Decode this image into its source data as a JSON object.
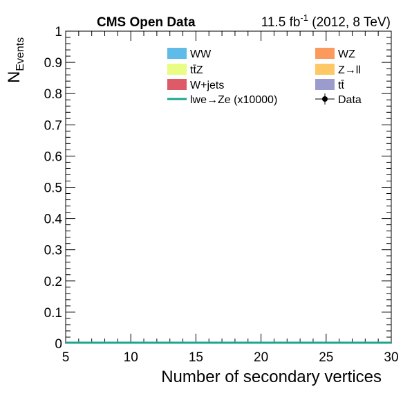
{
  "header": {
    "experiment": "CMS Open Data",
    "lumi_value": "11.5 fb",
    "lumi_exponent": "-1",
    "lumi_conditions": " (2012, 8 TeV)"
  },
  "chart_data": {
    "type": "bar",
    "xlabel": "Number of secondary vertices",
    "ylabel_main": "N",
    "ylabel_sub": "Events",
    "xlim": [
      5,
      30
    ],
    "ylim": [
      0,
      1
    ],
    "x_ticks": [
      5,
      10,
      15,
      20,
      25,
      30
    ],
    "x_tick_labels": [
      "5",
      "10",
      "15",
      "20",
      "25",
      "30"
    ],
    "y_ticks": [
      0,
      0.1,
      0.2,
      0.3,
      0.4,
      0.5,
      0.6,
      0.7,
      0.8,
      0.9,
      1
    ],
    "y_tick_labels": [
      "0",
      "0.1",
      "0.2",
      "0.3",
      "0.4",
      "0.5",
      "0.6",
      "0.7",
      "0.8",
      "0.9",
      "1"
    ],
    "grid": false,
    "legend_position": "top-right",
    "legend": [
      {
        "label": "WW",
        "kind": "fill",
        "color": "#5fbbe8"
      },
      {
        "label": "WZ",
        "kind": "fill",
        "color": "#fc9a5e"
      },
      {
        "label": "tt̄Z",
        "kind": "fill",
        "color": "#e9fc84"
      },
      {
        "label": "Z→ll",
        "kind": "fill",
        "color": "#fec866"
      },
      {
        "label": "W+jets",
        "kind": "fill",
        "color": "#dd5a68"
      },
      {
        "label": "tt̄",
        "kind": "fill",
        "color": "#9b9bce"
      },
      {
        "label": "lwe→Ze (x10000)",
        "kind": "line",
        "color": "#1aa58e"
      },
      {
        "label": "Data",
        "kind": "marker",
        "color": "#000000"
      }
    ],
    "series": [
      {
        "name": "lwe→Ze (x10000)",
        "x": [
          5,
          30
        ],
        "values": [
          0,
          0
        ]
      }
    ]
  }
}
